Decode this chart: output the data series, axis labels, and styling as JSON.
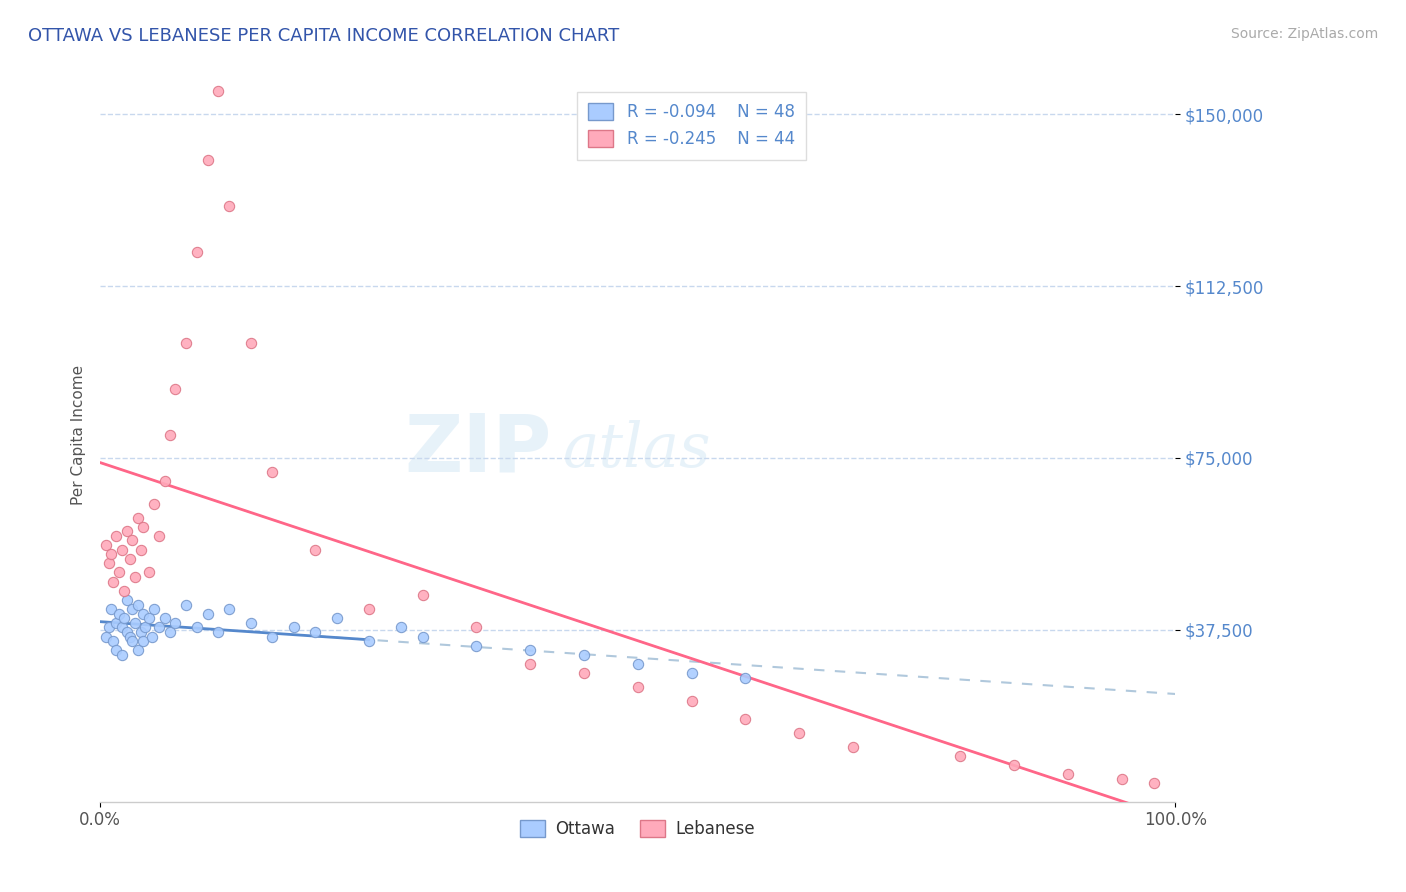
{
  "title": "OTTAWA VS LEBANESE PER CAPITA INCOME CORRELATION CHART",
  "source": "Source: ZipAtlas.com",
  "ylabel": "Per Capita Income",
  "xlim": [
    0.0,
    1.0
  ],
  "ylim": [
    0,
    160000
  ],
  "yticks": [
    37500,
    75000,
    112500,
    150000
  ],
  "ytick_labels": [
    "$37,500",
    "$75,000",
    "$112,500",
    "$150,000"
  ],
  "xtick_labels": [
    "0.0%",
    "100.0%"
  ],
  "title_color": "#3355aa",
  "axis_color": "#5588cc",
  "grid_color": "#c8d8ee",
  "ottawa_color": "#aaccff",
  "lebanese_color": "#ffaabb",
  "ottawa_edge": "#7799cc",
  "lebanese_edge": "#dd7788",
  "trend_ottawa_color": "#5588cc",
  "trend_lebanese_color": "#ff6688",
  "trend_dashed_color": "#b0c8dc",
  "legend_R_ottawa": "-0.094",
  "legend_N_ottawa": "48",
  "legend_R_lebanese": "-0.245",
  "legend_N_lebanese": "44",
  "watermark_zip": "ZIP",
  "watermark_atlas": "atlas",
  "ottawa_x": [
    0.005,
    0.008,
    0.01,
    0.012,
    0.015,
    0.015,
    0.018,
    0.02,
    0.02,
    0.022,
    0.025,
    0.025,
    0.028,
    0.03,
    0.03,
    0.032,
    0.035,
    0.035,
    0.038,
    0.04,
    0.04,
    0.042,
    0.045,
    0.048,
    0.05,
    0.055,
    0.06,
    0.065,
    0.07,
    0.08,
    0.09,
    0.1,
    0.11,
    0.12,
    0.14,
    0.16,
    0.18,
    0.2,
    0.22,
    0.25,
    0.28,
    0.3,
    0.35,
    0.4,
    0.45,
    0.5,
    0.55,
    0.6
  ],
  "ottawa_y": [
    36000,
    38000,
    42000,
    35000,
    39000,
    33000,
    41000,
    38000,
    32000,
    40000,
    37000,
    44000,
    36000,
    42000,
    35000,
    39000,
    43000,
    33000,
    37000,
    41000,
    35000,
    38000,
    40000,
    36000,
    42000,
    38000,
    40000,
    37000,
    39000,
    43000,
    38000,
    41000,
    37000,
    42000,
    39000,
    36000,
    38000,
    37000,
    40000,
    35000,
    38000,
    36000,
    34000,
    33000,
    32000,
    30000,
    28000,
    27000
  ],
  "lebanese_x": [
    0.005,
    0.008,
    0.01,
    0.012,
    0.015,
    0.018,
    0.02,
    0.022,
    0.025,
    0.028,
    0.03,
    0.032,
    0.035,
    0.038,
    0.04,
    0.045,
    0.05,
    0.055,
    0.06,
    0.065,
    0.07,
    0.08,
    0.09,
    0.1,
    0.11,
    0.12,
    0.14,
    0.16,
    0.2,
    0.25,
    0.3,
    0.35,
    0.4,
    0.45,
    0.5,
    0.55,
    0.6,
    0.65,
    0.7,
    0.8,
    0.85,
    0.9,
    0.95,
    0.98
  ],
  "lebanese_y": [
    56000,
    52000,
    54000,
    48000,
    58000,
    50000,
    55000,
    46000,
    59000,
    53000,
    57000,
    49000,
    62000,
    55000,
    60000,
    50000,
    65000,
    58000,
    70000,
    80000,
    90000,
    100000,
    120000,
    140000,
    155000,
    130000,
    100000,
    72000,
    55000,
    42000,
    45000,
    38000,
    30000,
    28000,
    25000,
    22000,
    18000,
    15000,
    12000,
    10000,
    8000,
    6000,
    5000,
    4000
  ]
}
